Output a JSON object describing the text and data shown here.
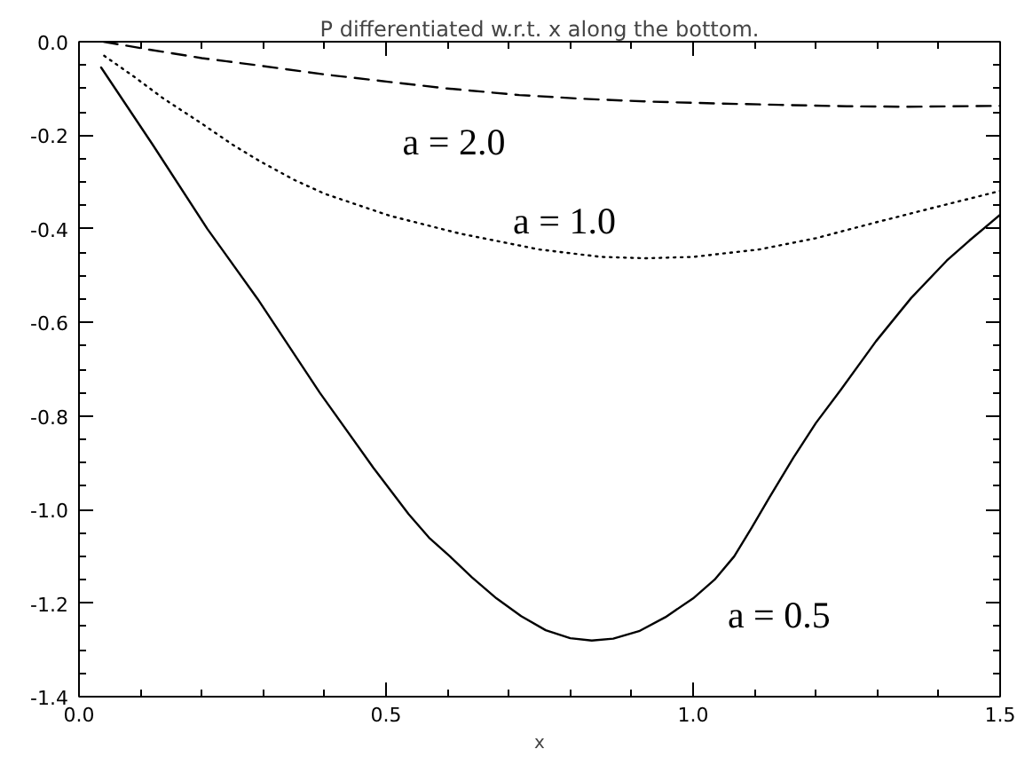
{
  "chart_data": {
    "type": "line",
    "title": "P differentiated w.r.t. x along the bottom.",
    "xlabel": "x",
    "xlim": [
      0.0,
      1.5
    ],
    "ylim": [
      -1.4,
      0.0
    ],
    "xticks": [
      {
        "value": 0,
        "label": "0.0"
      },
      0.5,
      {
        "value": 1,
        "label": "1.0"
      },
      1.5
    ],
    "yticks": [
      -1.4,
      -1.2,
      {
        "value": -1,
        "label": "-1.0"
      },
      -0.8,
      -0.6,
      -0.4,
      -0.2,
      {
        "value": 0,
        "label": "0.0"
      }
    ],
    "grid": false,
    "series": [
      {
        "color": "#000000",
        "line_style": "solid",
        "x": [
          0.036,
          0.12,
          0.209,
          0.291,
          0.392,
          0.479,
          0.537,
          0.57,
          0.604,
          0.64,
          0.68,
          0.72,
          0.76,
          0.8,
          0.835,
          0.87,
          0.912,
          0.955,
          1.0,
          1.035,
          1.067,
          1.095,
          1.124,
          1.163,
          1.2,
          1.24,
          1.298,
          1.355,
          1.413,
          1.45,
          1.5
        ],
        "values": [
          -0.055,
          -0.22,
          -0.4,
          -0.55,
          -0.75,
          -0.91,
          -1.01,
          -1.06,
          -1.1,
          -1.145,
          -1.19,
          -1.228,
          -1.258,
          -1.275,
          -1.28,
          -1.276,
          -1.26,
          -1.23,
          -1.19,
          -1.15,
          -1.1,
          -1.04,
          -0.975,
          -0.89,
          -0.815,
          -0.745,
          -0.64,
          -0.548,
          -0.468,
          -0.425,
          -0.37
        ]
      },
      {
        "color": "#000000",
        "line_style": "dotted",
        "x": [
          0.041,
          0.09,
          0.136,
          0.2,
          0.25,
          0.294,
          0.35,
          0.4,
          0.506,
          0.62,
          0.749,
          0.85,
          0.922,
          1.0,
          1.108,
          1.2,
          1.298,
          1.4,
          1.5
        ],
        "values": [
          -0.03,
          -0.075,
          -0.12,
          -0.175,
          -0.22,
          -0.255,
          -0.295,
          -0.325,
          -0.372,
          -0.41,
          -0.444,
          -0.46,
          -0.463,
          -0.46,
          -0.444,
          -0.42,
          -0.386,
          -0.352,
          -0.319
        ]
      },
      {
        "color": "#000000",
        "line_style": "dashed",
        "x": [
          0.04,
          0.115,
          0.2,
          0.294,
          0.4,
          0.506,
          0.6,
          0.717,
          0.82,
          0.928,
          1.04,
          1.14,
          1.25,
          1.351,
          1.5
        ],
        "values": [
          0.0,
          -0.017,
          -0.035,
          -0.051,
          -0.07,
          -0.086,
          -0.1,
          -0.114,
          -0.122,
          -0.128,
          -0.132,
          -0.135,
          -0.138,
          -0.139,
          -0.137
        ]
      }
    ],
    "annotations": [
      "a = 2.0",
      "a = 1.0",
      "a = 0.5"
    ]
  }
}
